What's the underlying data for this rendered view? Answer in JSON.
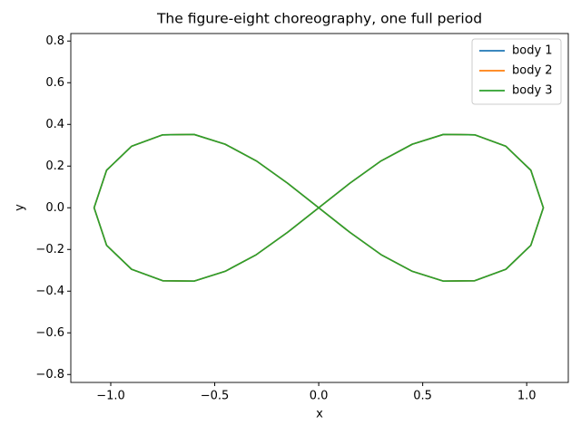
{
  "chart_data": {
    "type": "line",
    "title": "The figure-eight choreography, one full period",
    "x_label": "x",
    "y_label": "y",
    "xlim": [
      -1.192,
      1.2
    ],
    "ylim": [
      -0.838,
      0.836
    ],
    "xticks": [
      {
        "value": -1.0,
        "label": "−1.0"
      },
      {
        "value": -0.5,
        "label": "−0.5"
      },
      {
        "value": 0,
        "label": "0.0"
      },
      {
        "value": 0.5,
        "label": "0.5"
      },
      {
        "value": 1.0,
        "label": "1.0"
      }
    ],
    "yticks": [
      {
        "value": -0.8,
        "label": "−0.8"
      },
      {
        "value": -0.6,
        "label": "−0.6"
      },
      {
        "value": -0.4,
        "label": "−0.4"
      },
      {
        "value": -0.2,
        "label": "−0.2"
      },
      {
        "value": 0,
        "label": "0.0"
      },
      {
        "value": 0.2,
        "label": "0.2"
      },
      {
        "value": 0.4,
        "label": "0.4"
      },
      {
        "value": 0.6,
        "label": "0.6"
      },
      {
        "value": 0.8,
        "label": "0.8"
      }
    ],
    "legend": "upper right",
    "series": [
      {
        "name": "body 1",
        "color": "#1f77b4",
        "x": [
          0,
          0.15,
          0.3,
          0.45,
          0.6,
          0.75,
          0.9,
          1.02,
          1.08,
          1.02,
          0.9,
          0.75,
          0.6,
          0.45,
          0.3,
          0.15,
          0,
          -0.15,
          -0.3,
          -0.45,
          -0.6,
          -0.75,
          -0.9,
          -1.02,
          -1.08,
          -1.02,
          -0.9,
          -0.75,
          -0.6,
          -0.45,
          -0.3,
          -0.15,
          0
        ],
        "values": [
          0,
          0.118,
          0.225,
          0.305,
          0.352,
          0.35,
          0.295,
          0.18,
          0,
          -0.18,
          -0.295,
          -0.35,
          -0.352,
          -0.305,
          -0.225,
          -0.118,
          0,
          0.118,
          0.225,
          0.305,
          0.352,
          0.35,
          0.295,
          0.18,
          0,
          -0.18,
          -0.295,
          -0.35,
          -0.352,
          -0.305,
          -0.225,
          -0.118,
          0
        ]
      },
      {
        "name": "body 2",
        "color": "#ff7f0e",
        "x": [
          0.75,
          0.6,
          0.45,
          0.3,
          0.15,
          0,
          -0.15,
          -0.3,
          -0.45,
          -0.6,
          -0.75,
          -0.9,
          -1.02,
          -1.08,
          -1.02,
          -0.9,
          -0.75,
          -0.6,
          -0.45,
          -0.3,
          -0.15,
          0,
          0.15,
          0.3,
          0.45,
          0.6,
          0.75,
          0.9,
          1.02,
          1.08,
          1.02,
          0.9,
          0.75
        ],
        "values": [
          -0.35,
          -0.352,
          -0.305,
          -0.225,
          -0.118,
          0,
          0.118,
          0.225,
          0.305,
          0.352,
          0.35,
          0.295,
          0.18,
          0,
          -0.18,
          -0.295,
          -0.35,
          -0.352,
          -0.305,
          -0.225,
          -0.118,
          0,
          0.118,
          0.225,
          0.305,
          0.352,
          0.35,
          0.295,
          0.18,
          0,
          -0.18,
          -0.295,
          -0.35
        ]
      },
      {
        "name": "body 3",
        "color": "#2ca02c",
        "x": [
          -0.9,
          -1.02,
          -1.08,
          -1.02,
          -0.9,
          -0.75,
          -0.6,
          -0.45,
          -0.3,
          -0.15,
          0,
          0.15,
          0.3,
          0.45,
          0.6,
          0.75,
          0.9,
          1.02,
          1.08,
          1.02,
          0.9,
          0.75,
          0.6,
          0.45,
          0.3,
          0.15,
          0,
          -0.15,
          -0.3,
          -0.45,
          -0.6,
          -0.75,
          -0.9
        ],
        "values": [
          0.295,
          0.18,
          0,
          -0.18,
          -0.295,
          -0.35,
          -0.352,
          -0.305,
          -0.225,
          -0.118,
          0,
          0.118,
          0.225,
          0.305,
          0.352,
          0.35,
          0.295,
          0.18,
          0,
          -0.18,
          -0.295,
          -0.35,
          -0.352,
          -0.305,
          -0.225,
          -0.118,
          0,
          0.118,
          0.225,
          0.305,
          0.352,
          0.35,
          0.295
        ]
      }
    ]
  }
}
